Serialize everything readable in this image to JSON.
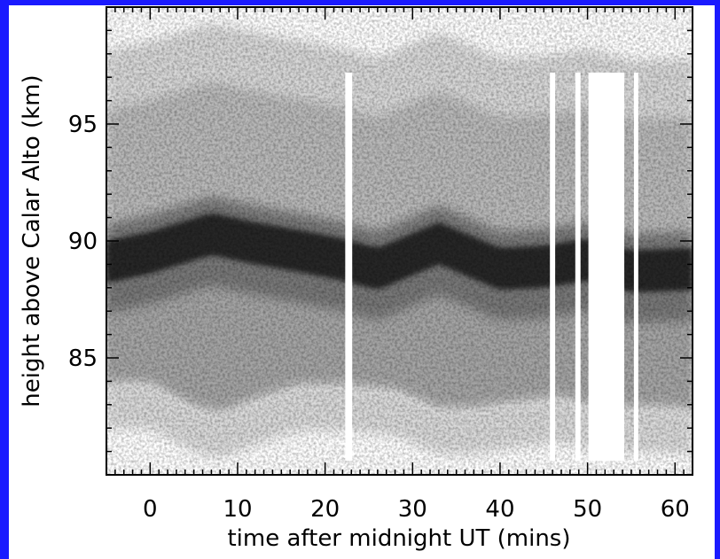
{
  "chart_data": {
    "type": "heatmap",
    "title": "",
    "xlabel": "time after midnight UT (mins)",
    "ylabel": "height above Calar Alto (km)",
    "xlim": [
      -5,
      62
    ],
    "ylim": [
      80,
      100
    ],
    "x_ticks": [
      {
        "value": 0,
        "label": "0"
      },
      {
        "value": 10,
        "label": "10"
      },
      {
        "value": 20,
        "label": "20"
      },
      {
        "value": 30,
        "label": "30"
      },
      {
        "value": 40,
        "label": "40"
      },
      {
        "value": 50,
        "label": "50"
      },
      {
        "value": 60,
        "label": "60"
      }
    ],
    "y_ticks": [
      {
        "value": 85,
        "label": "85"
      },
      {
        "value": 90,
        "label": "90"
      },
      {
        "value": 95,
        "label": "95"
      }
    ],
    "colormap": "grayscale (darker = higher density)",
    "layer_peak_height_km": {
      "time_min": [
        -5,
        0,
        7,
        12,
        18,
        22,
        26,
        33,
        40,
        45,
        50,
        55,
        62
      ],
      "height_km": [
        89.1,
        89.5,
        90.3,
        89.9,
        89.5,
        89.2,
        88.8,
        89.9,
        88.8,
        88.9,
        89.2,
        88.7,
        88.8
      ]
    },
    "layer_lower_edge_km": {
      "time_min": [
        -5,
        0,
        5,
        8,
        12,
        17,
        22,
        28,
        33,
        37,
        42,
        47,
        52,
        57,
        62
      ],
      "height_km": [
        83.8,
        83.8,
        82.8,
        82.5,
        83.1,
        83.7,
        83.7,
        83.5,
        82.7,
        82.7,
        83.0,
        83.2,
        82.7,
        82.8,
        82.7
      ]
    },
    "data_gaps_min": [
      [
        22.3,
        23.1
      ],
      [
        45.7,
        46.3
      ],
      [
        48.6,
        49.2
      ],
      [
        50.1,
        54.2
      ],
      [
        55.3,
        55.8
      ]
    ],
    "colors": {
      "border": "#1a1aff",
      "background": "#ffffff",
      "ink": "#000000"
    }
  }
}
